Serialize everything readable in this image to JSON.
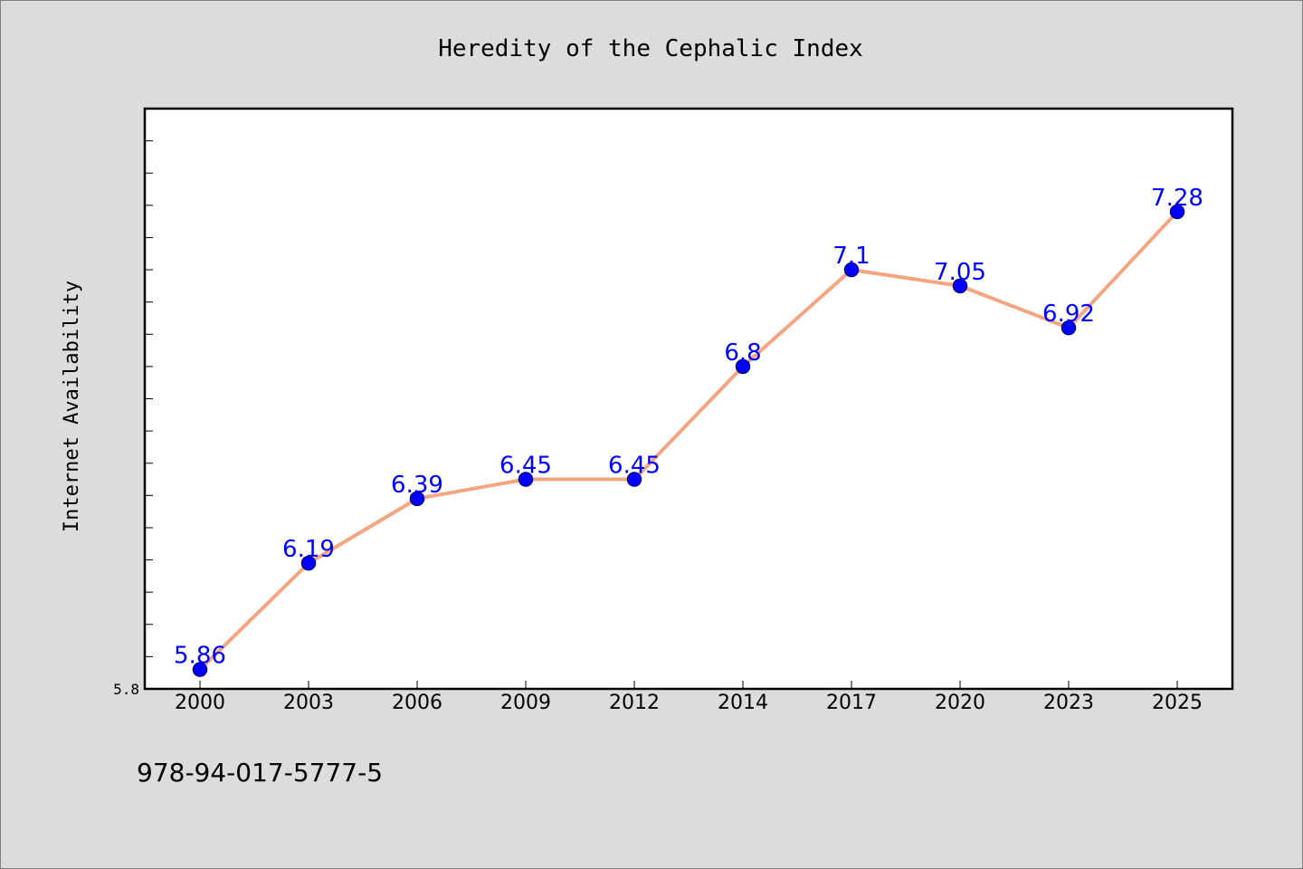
{
  "figure": {
    "footer": "978-94-017-5777-5"
  },
  "chart_data": {
    "type": "line",
    "title": "Heredity of the Cephalic Index",
    "xlabel": "",
    "ylabel": "Internet Availability",
    "categories": [
      "2000",
      "2003",
      "2006",
      "2009",
      "2012",
      "2014",
      "2017",
      "2020",
      "2023",
      "2025"
    ],
    "series": [
      {
        "values": [
          5.86,
          6.19,
          6.39,
          6.45,
          6.45,
          6.8,
          7.1,
          7.05,
          6.92,
          7.28
        ],
        "data_labels": [
          "5.86",
          "6.19",
          "6.39",
          "6.45",
          "6.45",
          "6.8",
          "7.1",
          "7.05",
          "6.92",
          "7.28"
        ]
      }
    ],
    "ylim": [
      5.8,
      7.6
    ],
    "yticks": [
      5.8
    ],
    "ytick_labels": [
      "5.8"
    ],
    "y_minor_step": 0.1,
    "grid": false,
    "legend": "none",
    "colors": {
      "line": "#f4a582",
      "marker": "#0000ff",
      "marker_edge": "#00008b",
      "data_label": "#0000ff",
      "plot_background": "#ffffff",
      "figure_background": "#dcdcdc"
    }
  }
}
